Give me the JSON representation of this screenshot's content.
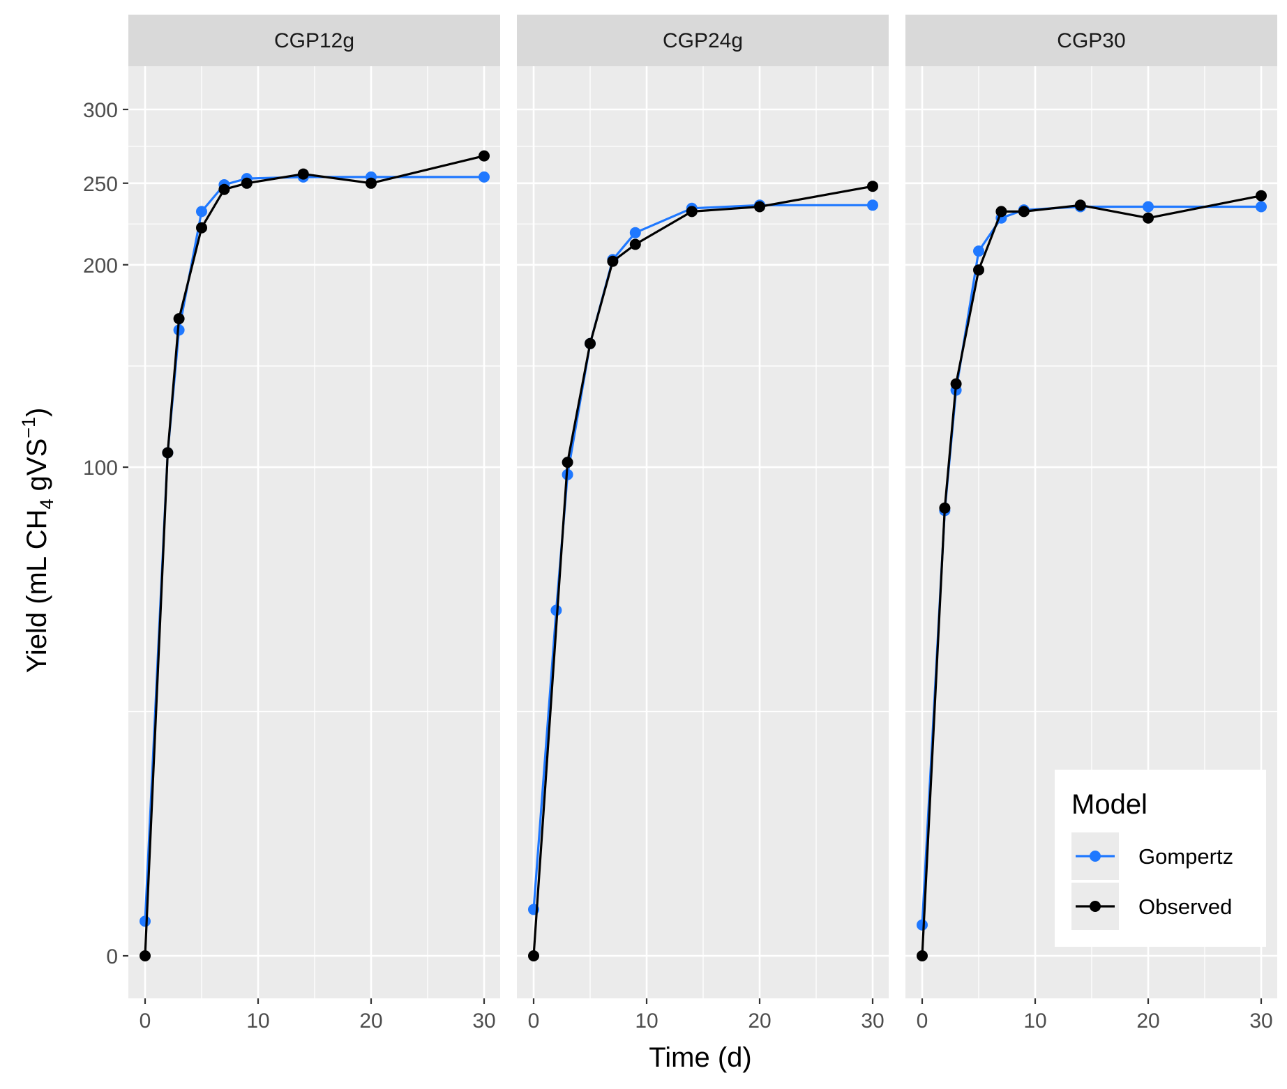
{
  "chart_data": {
    "type": "line",
    "xlabel": "Time (d)",
    "ylabel": {
      "prefix": "Yield (mL CH",
      "sub": "4",
      "mid": " gVS",
      "sup": "−1",
      "suffix": ")"
    },
    "xlim": [
      0,
      30
    ],
    "ylim": [
      0,
      300
    ],
    "x_ticks": [
      "0",
      "10",
      "20",
      "30"
    ],
    "y_ticks": [
      "0",
      "100",
      "200",
      "250",
      "300"
    ],
    "y_scale": "sqrt",
    "grid": true,
    "legend": {
      "title": "Model",
      "position": "bottom-right",
      "entries": [
        "Gompertz",
        "Observed"
      ]
    },
    "colors": {
      "Gompertz": "#1f78ff",
      "Observed": "#000000"
    },
    "panels": [
      {
        "title": "CGP12g",
        "series": [
          {
            "name": "Gompertz",
            "x": [
              0,
              2,
              3,
              5,
              7,
              9,
              14,
              20,
              30
            ],
            "y": [
              0.5,
              106,
              164,
              232,
              249,
              253,
              254,
              254,
              254
            ]
          },
          {
            "name": "Observed",
            "x": [
              0,
              2,
              3,
              5,
              7,
              9,
              14,
              20,
              30
            ],
            "y": [
              0,
              106,
              170,
              222,
              246,
              250,
              256,
              250,
              268
            ]
          }
        ]
      },
      {
        "title": "CGP24g",
        "series": [
          {
            "name": "Gompertz",
            "x": [
              0,
              2,
              3,
              5,
              7,
              9,
              14,
              20,
              30
            ],
            "y": [
              0.9,
              50,
              97,
              157,
              203,
              219,
              234,
              236,
              236
            ]
          },
          {
            "name": "Observed",
            "x": [
              0,
              2,
              3,
              5,
              7,
              9,
              14,
              20,
              30
            ],
            "y": [
              0,
              null,
              102,
              157,
              202,
              212,
              232,
              235,
              248
            ]
          }
        ]
      },
      {
        "title": "CGP30",
        "series": [
          {
            "name": "Gompertz",
            "x": [
              0,
              2,
              3,
              5,
              7,
              9,
              14,
              20,
              30
            ],
            "y": [
              0.4,
              83,
              134,
              208,
              228,
              233,
              235,
              235,
              235
            ]
          },
          {
            "name": "Observed",
            "x": [
              0,
              2,
              3,
              5,
              7,
              9,
              14,
              20,
              30
            ],
            "y": [
              0,
              84,
              137,
              197,
              232,
              232,
              236,
              228,
              242
            ]
          }
        ]
      }
    ]
  }
}
